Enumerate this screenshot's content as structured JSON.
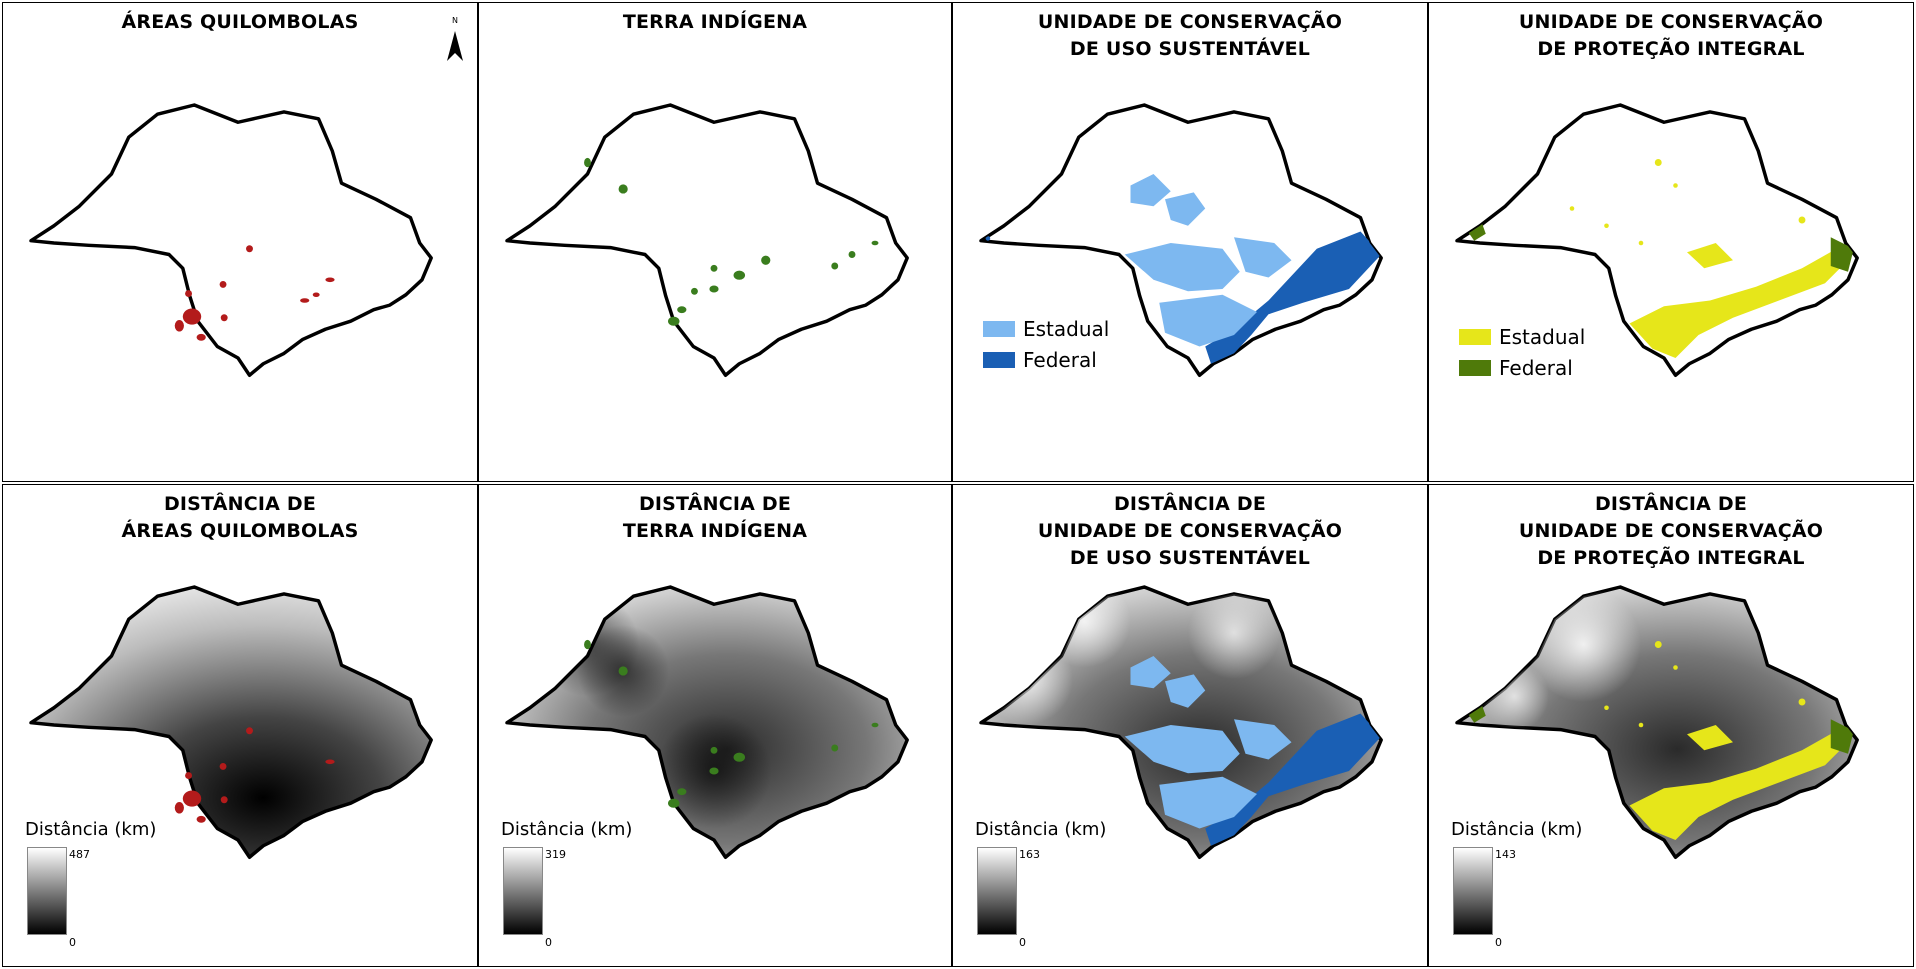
{
  "panels": [
    {
      "title_lines": [
        "ÁREAS QUILOMBOLAS"
      ],
      "feature_color": "#b31b1b"
    },
    {
      "title_lines": [
        "TERRA INDÍGENA"
      ],
      "feature_color": "#3a7d1e"
    },
    {
      "title_lines": [
        "UNIDADE DE CONSERVAÇÃO",
        "DE USO SUSTENTÁVEL"
      ],
      "legend": [
        {
          "label": "Estadual",
          "color": "#7db8f0"
        },
        {
          "label": "Federal",
          "color": "#1a5fb4"
        }
      ]
    },
    {
      "title_lines": [
        "UNIDADE DE CONSERVAÇÃO",
        "DE PROTEÇÃO INTEGRAL"
      ],
      "legend": [
        {
          "label": "Estadual",
          "color": "#e6e61a"
        },
        {
          "label": "Federal",
          "color": "#4f7a0a"
        }
      ]
    },
    {
      "title_lines": [
        "DISTÂNCIA DE",
        "ÁREAS QUILOMBOLAS"
      ],
      "ramp_title": "Distância (km)",
      "ramp_max": "487",
      "ramp_min": "0"
    },
    {
      "title_lines": [
        "DISTÂNCIA DE",
        "TERRA INDÍGENA"
      ],
      "ramp_title": "Distância (km)",
      "ramp_max": "319",
      "ramp_min": "0"
    },
    {
      "title_lines": [
        "DISTÂNCIA DE",
        "UNIDADE DE CONSERVAÇÃO",
        "DE USO SUSTENTÁVEL"
      ],
      "ramp_title": "Distância (km)",
      "ramp_max": "163",
      "ramp_min": "0"
    },
    {
      "title_lines": [
        "DISTÂNCIA DE",
        "UNIDADE DE CONSERVAÇÃO",
        "DE PROTEÇÃO INTEGRAL"
      ],
      "ramp_title": "Distância (km)",
      "ramp_max": "143",
      "ramp_min": "0"
    }
  ],
  "north_arrow": {
    "label": "N"
  }
}
